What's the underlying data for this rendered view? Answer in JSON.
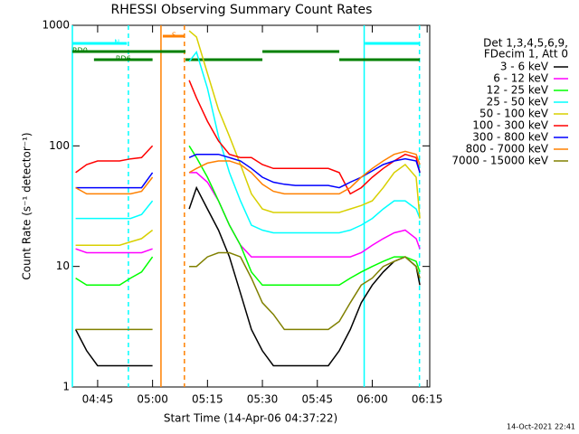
{
  "chart_data": {
    "type": "line",
    "title": "RHESSI Observing Summary Count Rates",
    "x_label": "Start Time (14-Apr-06 04:37:22)",
    "y_label": "Count Rate (s⁻¹ detector⁻¹)",
    "footer": "14-Oct-2021 22:41",
    "legend_header": [
      "Det 1,3,4,5,6,9,",
      "FDecim 1, Att 0"
    ],
    "log_y": true,
    "xlim": [
      278.1,
      375.7
    ],
    "ylim": [
      1,
      1000
    ],
    "xticks": [
      {
        "value": 285,
        "label": "04:45"
      },
      {
        "value": 300,
        "label": "05:00"
      },
      {
        "value": 315,
        "label": "05:15"
      },
      {
        "value": 330,
        "label": "05:30"
      },
      {
        "value": 345,
        "label": "05:45"
      },
      {
        "value": 360,
        "label": "06:00"
      },
      {
        "value": 375,
        "label": "06:15"
      }
    ],
    "yticks": [
      1,
      10,
      100,
      1000
    ],
    "x": [
      279,
      282,
      285,
      288,
      291,
      294,
      297,
      300,
      305,
      310,
      312,
      315,
      318,
      321,
      324,
      327,
      330,
      333,
      336,
      339,
      342,
      345,
      348,
      351,
      354,
      357,
      360,
      363,
      366,
      369,
      372,
      373
    ],
    "series": [
      {
        "name": "3 - 6 keV",
        "color": "#000000",
        "values": [
          3,
          2,
          1.5,
          1.5,
          1.5,
          1.5,
          1.5,
          1.5,
          null,
          30,
          45,
          30,
          20,
          12,
          6,
          3,
          2,
          1.5,
          1.5,
          1.5,
          1.5,
          1.5,
          1.5,
          2,
          3,
          5,
          7,
          9,
          11,
          12,
          10,
          7
        ]
      },
      {
        "name": "6 - 12 keV",
        "color": "#ff00ff",
        "values": [
          14,
          13,
          13,
          13,
          13,
          13,
          13,
          14,
          null,
          60,
          60,
          50,
          35,
          22,
          15,
          12,
          12,
          12,
          12,
          12,
          12,
          12,
          12,
          12,
          12,
          13,
          15,
          17,
          19,
          20,
          17,
          14
        ]
      },
      {
        "name": "12 - 25 keV",
        "color": "#00ff00",
        "values": [
          8,
          7,
          7,
          7,
          7,
          8,
          9,
          12,
          null,
          100,
          80,
          55,
          35,
          22,
          15,
          9,
          7,
          7,
          7,
          7,
          7,
          7,
          7,
          7,
          8,
          9,
          10,
          11,
          12,
          12,
          11,
          9
        ]
      },
      {
        "name": "25 - 50 keV",
        "color": "#00ffff",
        "values": [
          25,
          25,
          25,
          25,
          25,
          25,
          27,
          35,
          null,
          500,
          600,
          300,
          120,
          60,
          35,
          22,
          20,
          19,
          19,
          19,
          19,
          19,
          19,
          19,
          20,
          22,
          25,
          30,
          35,
          35,
          30,
          25
        ]
      },
      {
        "name": "50 - 100 keV",
        "color": "#d8d000",
        "values": [
          15,
          15,
          15,
          15,
          15,
          16,
          17,
          20,
          null,
          900,
          800,
          400,
          200,
          120,
          70,
          40,
          30,
          28,
          28,
          28,
          28,
          28,
          28,
          28,
          30,
          32,
          35,
          45,
          60,
          70,
          55,
          25
        ]
      },
      {
        "name": "100 - 300 keV",
        "color": "#ff0000",
        "values": [
          60,
          70,
          75,
          75,
          75,
          78,
          80,
          100,
          null,
          350,
          250,
          160,
          110,
          85,
          80,
          80,
          70,
          65,
          65,
          65,
          65,
          65,
          65,
          60,
          40,
          45,
          55,
          65,
          75,
          85,
          80,
          60
        ]
      },
      {
        "name": "300 - 800 keV",
        "color": "#0000ff",
        "values": [
          45,
          45,
          45,
          45,
          45,
          45,
          45,
          60,
          null,
          80,
          85,
          85,
          85,
          80,
          75,
          65,
          55,
          50,
          48,
          47,
          47,
          47,
          47,
          45,
          50,
          55,
          62,
          70,
          75,
          78,
          75,
          60
        ]
      },
      {
        "name": "800 - 7000 keV",
        "color": "#ff8000",
        "values": [
          45,
          40,
          40,
          40,
          40,
          40,
          42,
          55,
          null,
          60,
          65,
          72,
          75,
          75,
          70,
          60,
          48,
          42,
          40,
          40,
          40,
          40,
          40,
          40,
          45,
          55,
          65,
          75,
          85,
          90,
          85,
          70
        ]
      },
      {
        "name": "7000 - 15000 keV",
        "color": "#808000",
        "values": [
          3,
          3,
          3,
          3,
          3,
          3,
          3,
          3,
          null,
          10,
          10,
          12,
          13,
          13,
          12,
          8,
          5,
          4,
          3,
          3,
          3,
          3,
          3,
          3.5,
          5,
          7,
          8,
          10,
          11,
          12,
          10,
          8
        ]
      }
    ],
    "markers": [
      {
        "x": 278.1,
        "color": "#00ffff",
        "dashed": false
      },
      {
        "x": 293.4,
        "color": "#00ffff",
        "dashed": true
      },
      {
        "x": 302.3,
        "color": "#ff8000",
        "dashed": false
      },
      {
        "x": 308.7,
        "color": "#ff8000",
        "dashed": true
      },
      {
        "x": 357.8,
        "color": "#00ffff",
        "dashed": false
      },
      {
        "x": 372.9,
        "color": "#00ffff",
        "dashed": true
      }
    ],
    "flags": [
      {
        "label": "S",
        "color": "#ff8000",
        "segments": [
          [
            302.8,
            308.7
          ]
        ]
      },
      {
        "label": "N",
        "color": "#00ffff",
        "segments": [
          [
            278.1,
            293
          ],
          [
            358,
            373
          ]
        ]
      },
      {
        "label": "RD0",
        "color": "#008000",
        "segments": [
          [
            278.1,
            309
          ],
          [
            330,
            351
          ]
        ]
      },
      {
        "label": "RD6",
        "color": "#008000",
        "segments": [
          [
            284,
            300
          ],
          [
            309,
            330
          ],
          [
            351,
            373
          ]
        ]
      }
    ]
  }
}
